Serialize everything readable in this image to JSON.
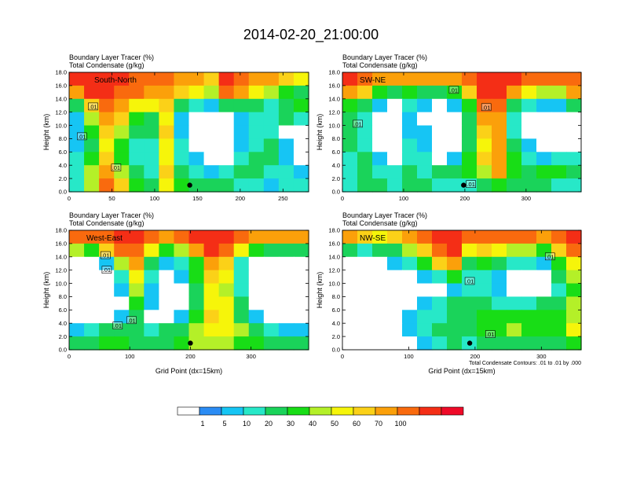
{
  "figure": {
    "title": "2014-02-20_21:00:00",
    "contour_note": "Total Condensate Contours: .01 to .01 by .000"
  },
  "chart_data": [
    {
      "type": "heatmap",
      "panel": "top-left",
      "region": "South-North",
      "subtitle_line1": "Boundary Layer Tracer    (%)",
      "subtitle_line2": "Total Condensate    (g/kg)",
      "ylabel": "Height (km)",
      "xlabel": "",
      "xlim": [
        0,
        280
      ],
      "ylim": [
        0,
        18
      ],
      "xticks": [
        0,
        50,
        100,
        150,
        200,
        250
      ],
      "yticks": [
        "0.0",
        "2.0",
        "4.0",
        "6.0",
        "8.0",
        "10.0",
        "12.0",
        "14.0",
        "16.0",
        "18.0"
      ],
      "contour_label": ".01",
      "station_x": 141,
      "station_height": 1.0,
      "contour_label_points": [
        [
          28,
          12.8
        ],
        [
          15,
          8.3
        ],
        [
          55,
          3.6
        ]
      ],
      "field": [
        [
          95,
          90,
          95,
          90,
          85,
          80,
          85,
          75,
          70,
          65,
          95,
          85,
          75,
          70,
          60,
          50
        ],
        [
          75,
          90,
          90,
          85,
          80,
          70,
          75,
          60,
          50,
          40,
          80,
          70,
          55,
          45,
          35,
          25
        ],
        [
          20,
          60,
          80,
          70,
          55,
          50,
          65,
          20,
          10,
          5,
          20,
          25,
          20,
          15,
          20,
          30
        ],
        [
          5,
          40,
          70,
          60,
          30,
          25,
          55,
          5,
          0,
          0,
          0,
          5,
          10,
          15,
          20,
          10
        ],
        [
          5,
          30,
          60,
          40,
          20,
          20,
          60,
          5,
          0,
          0,
          0,
          5,
          10,
          10,
          0,
          0
        ],
        [
          5,
          25,
          50,
          30,
          15,
          15,
          55,
          10,
          0,
          0,
          0,
          5,
          15,
          20,
          5,
          0
        ],
        [
          10,
          30,
          60,
          30,
          10,
          10,
          50,
          10,
          5,
          0,
          0,
          10,
          20,
          20,
          5,
          0
        ],
        [
          10,
          40,
          70,
          45,
          20,
          10,
          60,
          20,
          10,
          5,
          15,
          20,
          20,
          10,
          10,
          5
        ],
        [
          15,
          40,
          80,
          60,
          30,
          20,
          50,
          30,
          20,
          20,
          20,
          15,
          15,
          5,
          15,
          10
        ]
      ]
    },
    {
      "type": "heatmap",
      "panel": "top-right",
      "region": "SW-NE",
      "subtitle_line1": "Boundary Layer Tracer    (%)",
      "subtitle_line2": "Total Condensate    (g/kg)",
      "ylabel": "Height (km)",
      "xlabel": "",
      "xlim": [
        0,
        390
      ],
      "ylim": [
        0,
        18
      ],
      "xticks": [
        0,
        100,
        200,
        300
      ],
      "yticks": [
        "0.0",
        "2.0",
        "4.0",
        "6.0",
        "8.0",
        "10.0",
        "12.0",
        "14.0",
        "16.0",
        "18.0"
      ],
      "contour_label": ".01",
      "station_x": 198,
      "station_height": 1.0,
      "contour_label_points": [
        [
          25,
          10.2
        ],
        [
          182,
          15.3
        ],
        [
          210,
          1.1
        ],
        [
          235,
          12.7
        ]
      ],
      "field": [
        [
          95,
          85,
          75,
          70,
          75,
          70,
          70,
          75,
          80,
          95,
          95,
          90,
          85,
          85,
          80,
          85
        ],
        [
          70,
          60,
          30,
          20,
          35,
          25,
          25,
          30,
          60,
          90,
          90,
          70,
          50,
          45,
          40,
          70
        ],
        [
          30,
          20,
          5,
          0,
          10,
          5,
          0,
          5,
          30,
          80,
          85,
          25,
          10,
          5,
          5,
          20
        ],
        [
          25,
          15,
          0,
          0,
          5,
          0,
          0,
          0,
          20,
          70,
          75,
          10,
          0,
          0,
          0,
          0
        ],
        [
          20,
          15,
          0,
          0,
          5,
          5,
          0,
          0,
          20,
          60,
          70,
          15,
          0,
          0,
          0,
          0
        ],
        [
          20,
          10,
          0,
          0,
          10,
          5,
          0,
          0,
          20,
          50,
          70,
          20,
          5,
          0,
          0,
          0
        ],
        [
          15,
          20,
          5,
          0,
          10,
          10,
          0,
          5,
          30,
          60,
          75,
          30,
          10,
          5,
          10,
          15
        ],
        [
          15,
          25,
          15,
          10,
          20,
          15,
          20,
          20,
          30,
          40,
          70,
          30,
          25,
          30,
          30,
          25
        ],
        [
          10,
          20,
          20,
          15,
          25,
          20,
          15,
          10,
          10,
          20,
          30,
          20,
          20,
          25,
          15,
          10
        ]
      ]
    },
    {
      "type": "heatmap",
      "panel": "bottom-left",
      "region": "West-East",
      "subtitle_line1": "Boundary Layer Tracer    (%)",
      "subtitle_line2": "Total Condensate    (g/kg)",
      "ylabel": "Height (km)",
      "xlabel": "Grid Point (dx=15km)",
      "xlim": [
        0,
        395
      ],
      "ylim": [
        0,
        18
      ],
      "xticks": [
        0,
        100,
        200,
        300
      ],
      "yticks": [
        "0.0",
        "2.0",
        "4.0",
        "6.0",
        "8.0",
        "10.0",
        "12.0",
        "14.0",
        "16.0",
        "18.0"
      ],
      "contour_label": ".01",
      "station_x": 200,
      "station_height": 1.0,
      "contour_label_points": [
        [
          60,
          14.2
        ],
        [
          62,
          12.0
        ],
        [
          80,
          3.6
        ],
        [
          103,
          4.4
        ]
      ],
      "field": [
        [
          85,
          80,
          85,
          90,
          95,
          85,
          75,
          80,
          90,
          95,
          90,
          80,
          75,
          70,
          75,
          70
        ],
        [
          40,
          35,
          60,
          80,
          85,
          50,
          35,
          45,
          70,
          90,
          80,
          50,
          30,
          25,
          20,
          25
        ],
        [
          0,
          0,
          5,
          40,
          70,
          20,
          5,
          10,
          35,
          70,
          60,
          15,
          0,
          0,
          0,
          0
        ],
        [
          0,
          0,
          0,
          15,
          55,
          10,
          0,
          5,
          30,
          60,
          50,
          10,
          0,
          0,
          0,
          0
        ],
        [
          0,
          0,
          0,
          5,
          40,
          5,
          0,
          0,
          20,
          50,
          45,
          15,
          0,
          0,
          0,
          0
        ],
        [
          0,
          0,
          0,
          0,
          30,
          5,
          0,
          0,
          25,
          55,
          50,
          20,
          0,
          0,
          0,
          0
        ],
        [
          0,
          0,
          0,
          5,
          20,
          0,
          0,
          5,
          30,
          60,
          55,
          25,
          5,
          0,
          0,
          0
        ],
        [
          5,
          10,
          20,
          25,
          20,
          15,
          20,
          25,
          40,
          55,
          50,
          40,
          20,
          10,
          5,
          5
        ],
        [
          20,
          25,
          30,
          35,
          25,
          20,
          25,
          30,
          40,
          40,
          40,
          30,
          30,
          25,
          20,
          20
        ]
      ]
    },
    {
      "type": "heatmap",
      "panel": "bottom-right",
      "region": "NW-SE",
      "subtitle_line1": "Boundary Layer Tracer    (%)",
      "subtitle_line2": "Total Condensate    (g/kg)",
      "ylabel": "Height (km)",
      "xlabel": "Grid Point (dx=15km)",
      "xlim": [
        0,
        360
      ],
      "ylim": [
        0,
        18
      ],
      "xticks": [
        0,
        100,
        200,
        300
      ],
      "yticks": [
        "0.0",
        "2.0",
        "4.0",
        "6.0",
        "8.0",
        "10.0",
        "12.0",
        "14.0",
        "16.0",
        "18.0"
      ],
      "contour_label": ".01",
      "station_x": 192,
      "station_height": 1.0,
      "contour_label_points": [
        [
          192,
          10.3
        ],
        [
          223,
          2.3
        ],
        [
          313,
          14.0
        ]
      ],
      "field": [
        [
          70,
          60,
          55,
          60,
          70,
          85,
          90,
          95,
          80,
          85,
          85,
          80,
          80,
          75,
          85,
          95
        ],
        [
          25,
          15,
          20,
          25,
          40,
          65,
          80,
          90,
          50,
          60,
          55,
          45,
          40,
          35,
          60,
          80
        ],
        [
          0,
          0,
          0,
          5,
          10,
          35,
          60,
          70,
          25,
          30,
          20,
          10,
          10,
          5,
          30,
          55
        ],
        [
          0,
          0,
          0,
          0,
          0,
          5,
          15,
          30,
          15,
          10,
          5,
          0,
          0,
          0,
          20,
          40
        ],
        [
          0,
          0,
          0,
          0,
          0,
          0,
          0,
          5,
          10,
          10,
          5,
          0,
          0,
          0,
          15,
          35
        ],
        [
          0,
          0,
          0,
          0,
          0,
          5,
          15,
          25,
          20,
          20,
          15,
          10,
          15,
          20,
          25,
          40
        ],
        [
          0,
          0,
          0,
          0,
          5,
          10,
          15,
          20,
          25,
          30,
          35,
          30,
          30,
          30,
          35,
          45
        ],
        [
          0,
          0,
          0,
          0,
          5,
          10,
          20,
          25,
          25,
          30,
          35,
          40,
          35,
          30,
          35,
          50
        ],
        [
          0,
          0,
          0,
          0,
          0,
          5,
          15,
          20,
          15,
          25,
          20,
          20,
          25,
          20,
          20,
          30
        ]
      ]
    }
  ],
  "colorbar": {
    "colors": [
      "#ffffff",
      "#2b8cf4",
      "#16c5f4",
      "#27e8c8",
      "#1ad35a",
      "#18dd16",
      "#b4f028",
      "#f6f50a",
      "#fbd118",
      "#fba00a",
      "#f96a0e",
      "#f42e16",
      "#ef0a28"
    ],
    "labels": [
      "1",
      "5",
      "10",
      "20",
      "30",
      "40",
      "50",
      "60",
      "70",
      "100"
    ]
  }
}
